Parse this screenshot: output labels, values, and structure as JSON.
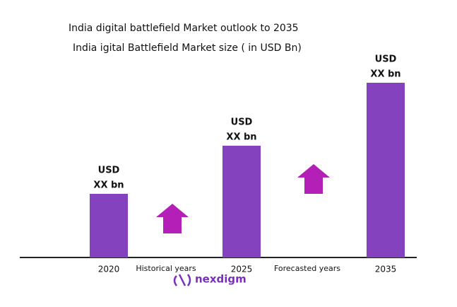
{
  "chart_data": {
    "type": "bar",
    "title": "India digital battlefield Market outlook to 2035",
    "subtitle": "India igital Battlefield Market size ( in USD Bn)",
    "categories": [
      "2020",
      "2025",
      "2035"
    ],
    "values": [
      90,
      158,
      247
    ],
    "value_labels": [
      [
        "USD",
        "XX bn"
      ],
      [
        "USD",
        "XX bn"
      ],
      [
        "USD",
        "XX bn"
      ]
    ],
    "color": "#8542be",
    "ylim": [
      0,
      300
    ],
    "annotations": [
      "Historical years",
      "Forecasted years"
    ],
    "arrow_color": "#b41fb8",
    "logo": "nexdigm"
  }
}
